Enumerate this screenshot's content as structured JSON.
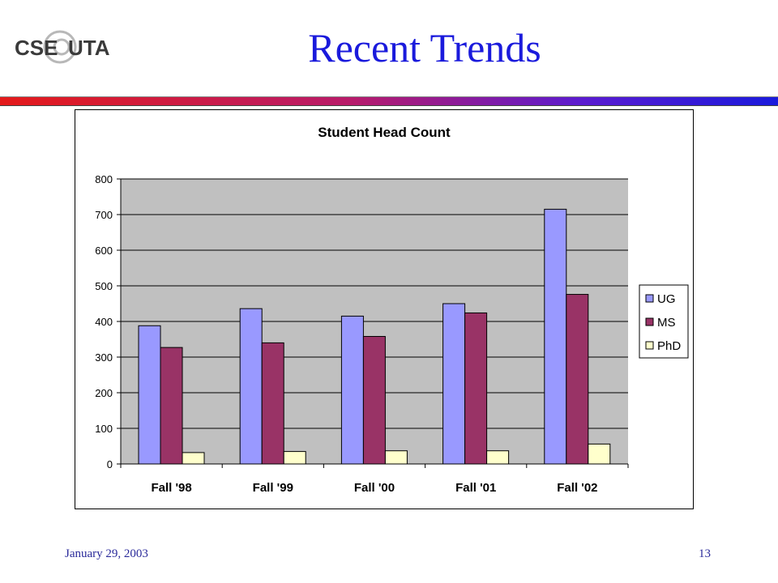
{
  "slide": {
    "title": "Recent Trends",
    "logo_text_left": "CSE",
    "logo_text_right": "UTA",
    "footer_date": "January 29, 2003",
    "page_number": "13"
  },
  "colors": {
    "title": "#1a1adc",
    "plot_bg": "#c0c0c0",
    "UG": "#9999ff",
    "MS": "#993366",
    "PhD": "#ffffcc"
  },
  "chart_data": {
    "type": "bar",
    "title": "Student Head Count",
    "categories": [
      "Fall '98",
      "Fall '99",
      "Fall '00",
      "Fall '01",
      "Fall '02"
    ],
    "series": [
      {
        "name": "UG",
        "values": [
          388,
          436,
          415,
          450,
          715
        ]
      },
      {
        "name": "MS",
        "values": [
          327,
          340,
          358,
          424,
          476
        ]
      },
      {
        "name": "PhD",
        "values": [
          32,
          35,
          37,
          37,
          56
        ]
      }
    ],
    "ylim": [
      0,
      800
    ],
    "yticks": [
      "0",
      "100",
      "200",
      "300",
      "400",
      "500",
      "600",
      "700",
      "800"
    ],
    "grid": true,
    "legend_position": "right"
  }
}
